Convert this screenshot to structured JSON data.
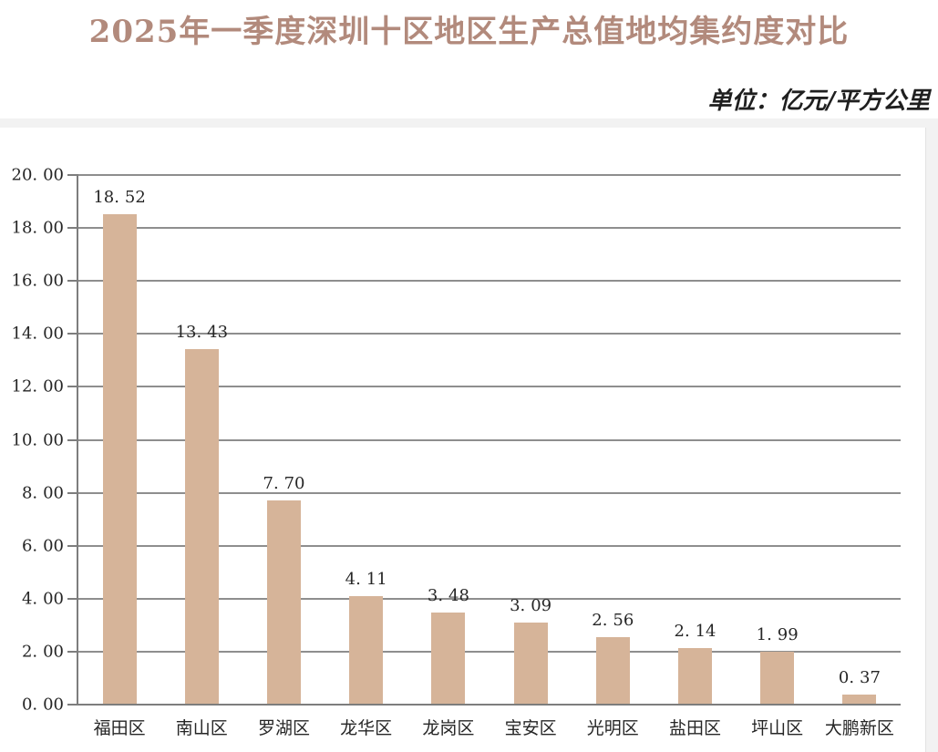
{
  "page": {
    "title": "2025年一季度深圳十区地区生产总值地均集约度对比",
    "unit_label": "单位：亿元/平方公里"
  },
  "chart_data": {
    "type": "bar",
    "title": "2025年一季度深圳十区地区生产总值地均集约度对比",
    "unit": "亿元/平方公里",
    "categories": [
      "福田区",
      "南山区",
      "罗湖区",
      "龙华区",
      "龙岗区",
      "宝安区",
      "光明区",
      "盐田区",
      "坪山区",
      "大鹏新区"
    ],
    "values": [
      18.52,
      13.43,
      7.7,
      4.11,
      3.48,
      3.09,
      2.56,
      2.14,
      1.99,
      0.37
    ],
    "data_labels": [
      "18.52",
      "13.43",
      "7.70",
      "4.11",
      "3.48",
      "3.09",
      "2.56",
      "2.14",
      "1.99",
      "0.37"
    ],
    "xlabel": "",
    "ylabel": "",
    "ylim": [
      0,
      20
    ],
    "y_tick_step": 2,
    "y_tick_labels": [
      "0.00",
      "2.00",
      "4.00",
      "6.00",
      "8.00",
      "10.00",
      "12.00",
      "14.00",
      "16.00",
      "18.00",
      "20.00"
    ],
    "grid": true,
    "legend": "none",
    "colors": {
      "bar_fill": "#d6b499",
      "gridline": "#8e8e8e",
      "axis": "#7d7d7d",
      "title_text": "#b28a7c",
      "label_text": "#262626",
      "unit_text": "#1f1f1f",
      "card_background": "#ffffff",
      "page_background": "#f2f2f2"
    }
  }
}
